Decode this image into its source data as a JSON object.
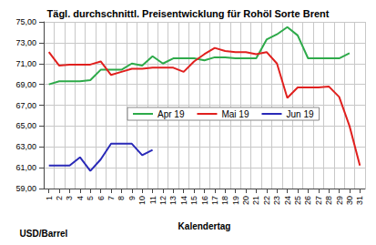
{
  "chart_data": {
    "type": "line",
    "title": "Tägl. durchschnittl. Preisentwicklung für Rohöl Sorte Brent",
    "x_label": "Kalendertag",
    "y_label": "USD/Barrel",
    "categories": [
      "1",
      "2",
      "3",
      "4",
      "5",
      "6",
      "7",
      "8",
      "9",
      "10",
      "11",
      "12",
      "13",
      "14",
      "15",
      "16",
      "17",
      "18",
      "19",
      "20",
      "21",
      "22",
      "23",
      "24",
      "25",
      "26",
      "27",
      "28",
      "29",
      "30",
      "31"
    ],
    "series": [
      {
        "name": "Apr 19",
        "color": "#2eaa4a",
        "values": [
          69.0,
          69.3,
          69.3,
          69.3,
          69.4,
          70.4,
          70.4,
          70.4,
          71.0,
          70.8,
          71.7,
          71.0,
          71.5,
          71.5,
          71.5,
          71.3,
          71.6,
          71.6,
          71.5,
          71.5,
          71.5,
          73.3,
          73.8,
          74.5,
          73.7,
          71.5,
          71.5,
          71.5,
          71.5,
          72.0,
          null
        ]
      },
      {
        "name": "Mai 19",
        "color": "#e0201e",
        "values": [
          72.1,
          70.8,
          70.9,
          70.9,
          70.9,
          71.2,
          69.9,
          70.2,
          70.5,
          70.5,
          70.6,
          70.6,
          70.6,
          70.2,
          71.2,
          71.9,
          72.5,
          72.2,
          72.1,
          72.1,
          71.9,
          72.1,
          71.0,
          67.7,
          68.7,
          68.7,
          68.7,
          68.8,
          67.8,
          65.0,
          61.2
        ]
      },
      {
        "name": "Jun 19",
        "color": "#2a2ab8",
        "values": [
          61.2,
          61.2,
          61.2,
          62.0,
          60.7,
          61.8,
          63.3,
          63.3,
          63.3,
          62.2,
          62.7,
          null,
          null,
          null,
          null,
          null,
          null,
          null,
          null,
          null,
          null,
          null,
          null,
          null,
          null,
          null,
          null,
          null,
          null,
          null,
          null
        ]
      }
    ],
    "ylim": [
      59,
      75
    ],
    "yticks": [
      {
        "value": 59,
        "label": "59,00"
      },
      {
        "value": 61,
        "label": "61,00"
      },
      {
        "value": 63,
        "label": "63,00"
      },
      {
        "value": 65,
        "label": "65,00"
      },
      {
        "value": 67,
        "label": "67,00"
      },
      {
        "value": 69,
        "label": "69,00"
      },
      {
        "value": 71,
        "label": "71,00"
      },
      {
        "value": 73,
        "label": "73,00"
      },
      {
        "value": 75,
        "label": "75,00"
      }
    ],
    "grid": true,
    "legend": "center"
  }
}
